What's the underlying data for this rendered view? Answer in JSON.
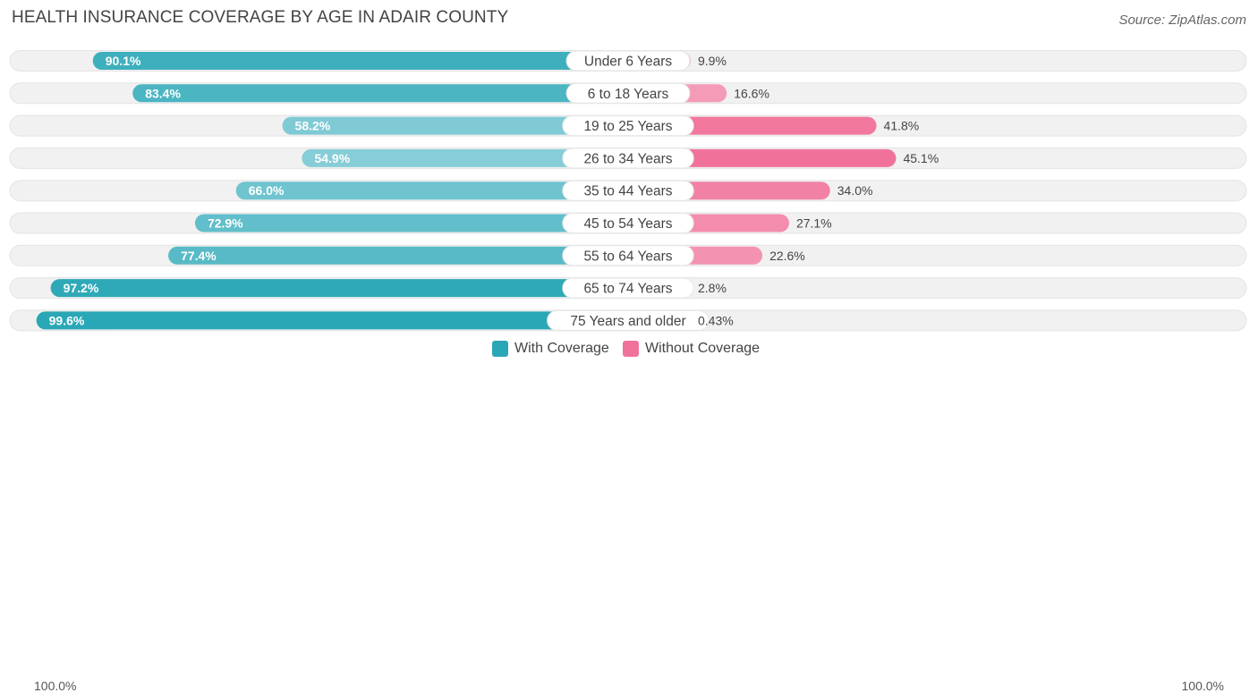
{
  "chart_data": {
    "type": "bar",
    "orientation": "horizontal-diverging",
    "title": "HEALTH INSURANCE COVERAGE BY AGE IN ADAIR COUNTY",
    "source": "Source: ZipAtlas.com",
    "categories": [
      "Under 6 Years",
      "6 to 18 Years",
      "19 to 25 Years",
      "26 to 34 Years",
      "35 to 44 Years",
      "45 to 54 Years",
      "55 to 64 Years",
      "65 to 74 Years",
      "75 Years and older"
    ],
    "series": [
      {
        "name": "With Coverage",
        "values": [
          90.1,
          83.4,
          58.2,
          54.9,
          66.0,
          72.9,
          77.4,
          97.2,
          99.6
        ],
        "labels": [
          "90.1%",
          "83.4%",
          "58.2%",
          "54.9%",
          "66.0%",
          "72.9%",
          "77.4%",
          "97.2%",
          "99.6%"
        ]
      },
      {
        "name": "Without Coverage",
        "values": [
          9.9,
          16.6,
          41.8,
          45.1,
          34.0,
          27.1,
          22.6,
          2.8,
          0.43
        ],
        "labels": [
          "9.9%",
          "16.6%",
          "41.8%",
          "45.1%",
          "34.0%",
          "27.1%",
          "22.6%",
          "2.8%",
          "0.43%"
        ]
      }
    ],
    "axis_left_label": "100.0%",
    "axis_right_label": "100.0%",
    "xlim": [
      0,
      100
    ],
    "legend_position": "bottom-center"
  },
  "colors": {
    "with_dark": "#2aa7b6",
    "with_light": "#86cdd7",
    "without_dark": "#f0729a",
    "without_light": "#f7b3c8",
    "track": "#f1f1f1"
  }
}
